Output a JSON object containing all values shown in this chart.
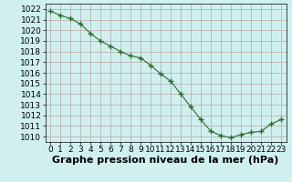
{
  "x": [
    0,
    1,
    2,
    3,
    4,
    5,
    6,
    7,
    8,
    9,
    10,
    11,
    12,
    13,
    14,
    15,
    16,
    17,
    18,
    19,
    20,
    21,
    22,
    23
  ],
  "y": [
    1021.8,
    1021.4,
    1021.1,
    1020.6,
    1019.7,
    1019.0,
    1018.5,
    1018.0,
    1017.6,
    1017.4,
    1016.7,
    1015.9,
    1015.2,
    1014.0,
    1012.8,
    1011.6,
    1010.5,
    1010.1,
    1009.9,
    1010.2,
    1010.4,
    1010.5,
    1011.2,
    1011.6
  ],
  "line_color": "#2d6a2d",
  "marker": "+",
  "marker_size": 4,
  "bg_color": "#d0f0f0",
  "grid_color": "#b8a8a8",
  "xlabel": "Graphe pression niveau de la mer (hPa)",
  "xlabel_fontsize": 8,
  "yticks": [
    1010,
    1011,
    1012,
    1013,
    1014,
    1015,
    1016,
    1017,
    1018,
    1019,
    1020,
    1021,
    1022
  ],
  "xticks": [
    0,
    1,
    2,
    3,
    4,
    5,
    6,
    7,
    8,
    9,
    10,
    11,
    12,
    13,
    14,
    15,
    16,
    17,
    18,
    19,
    20,
    21,
    22,
    23
  ],
  "ylim": [
    1009.5,
    1022.5
  ],
  "xlim": [
    -0.5,
    23.5
  ],
  "tick_fontsize": 6.5
}
